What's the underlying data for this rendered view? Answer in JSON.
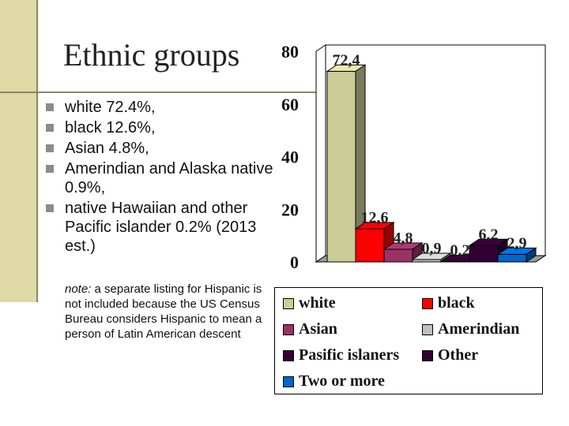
{
  "slide": {
    "title": "Ethnic groups",
    "bullets": [
      "white 72.4%,",
      "black 12.6%,",
      "Asian 4.8%,",
      "Amerindian and Alaska native 0.9%,",
      "native Hawaiian and other Pacific islander 0.2% (2013 est.)"
    ],
    "note_label": "note:",
    "note_text": " a separate listing for Hispanic is not included because the US Census Bureau considers Hispanic to mean a person of Latin American descent"
  },
  "chart_data": {
    "type": "bar",
    "categories": [
      "white",
      "black",
      "Asian",
      "Amerindian",
      "Pasific islaners",
      "Other",
      "Two or more"
    ],
    "values": [
      72.4,
      12.6,
      4.8,
      0.9,
      0.2,
      6.2,
      2.9
    ],
    "value_labels": [
      "72,4",
      "12,6",
      "4,8",
      "0,9",
      "0,2",
      "6,2",
      "2,9"
    ],
    "colors": [
      "#cccc99",
      "#ff0000",
      "#993366",
      "#c0c0c0",
      "#330033",
      "#330033",
      "#0066cc"
    ],
    "ylim": [
      0,
      80
    ],
    "yticks": [
      "0",
      "20",
      "40",
      "60",
      "80"
    ],
    "legend_position": "bottom",
    "style": "3d"
  }
}
